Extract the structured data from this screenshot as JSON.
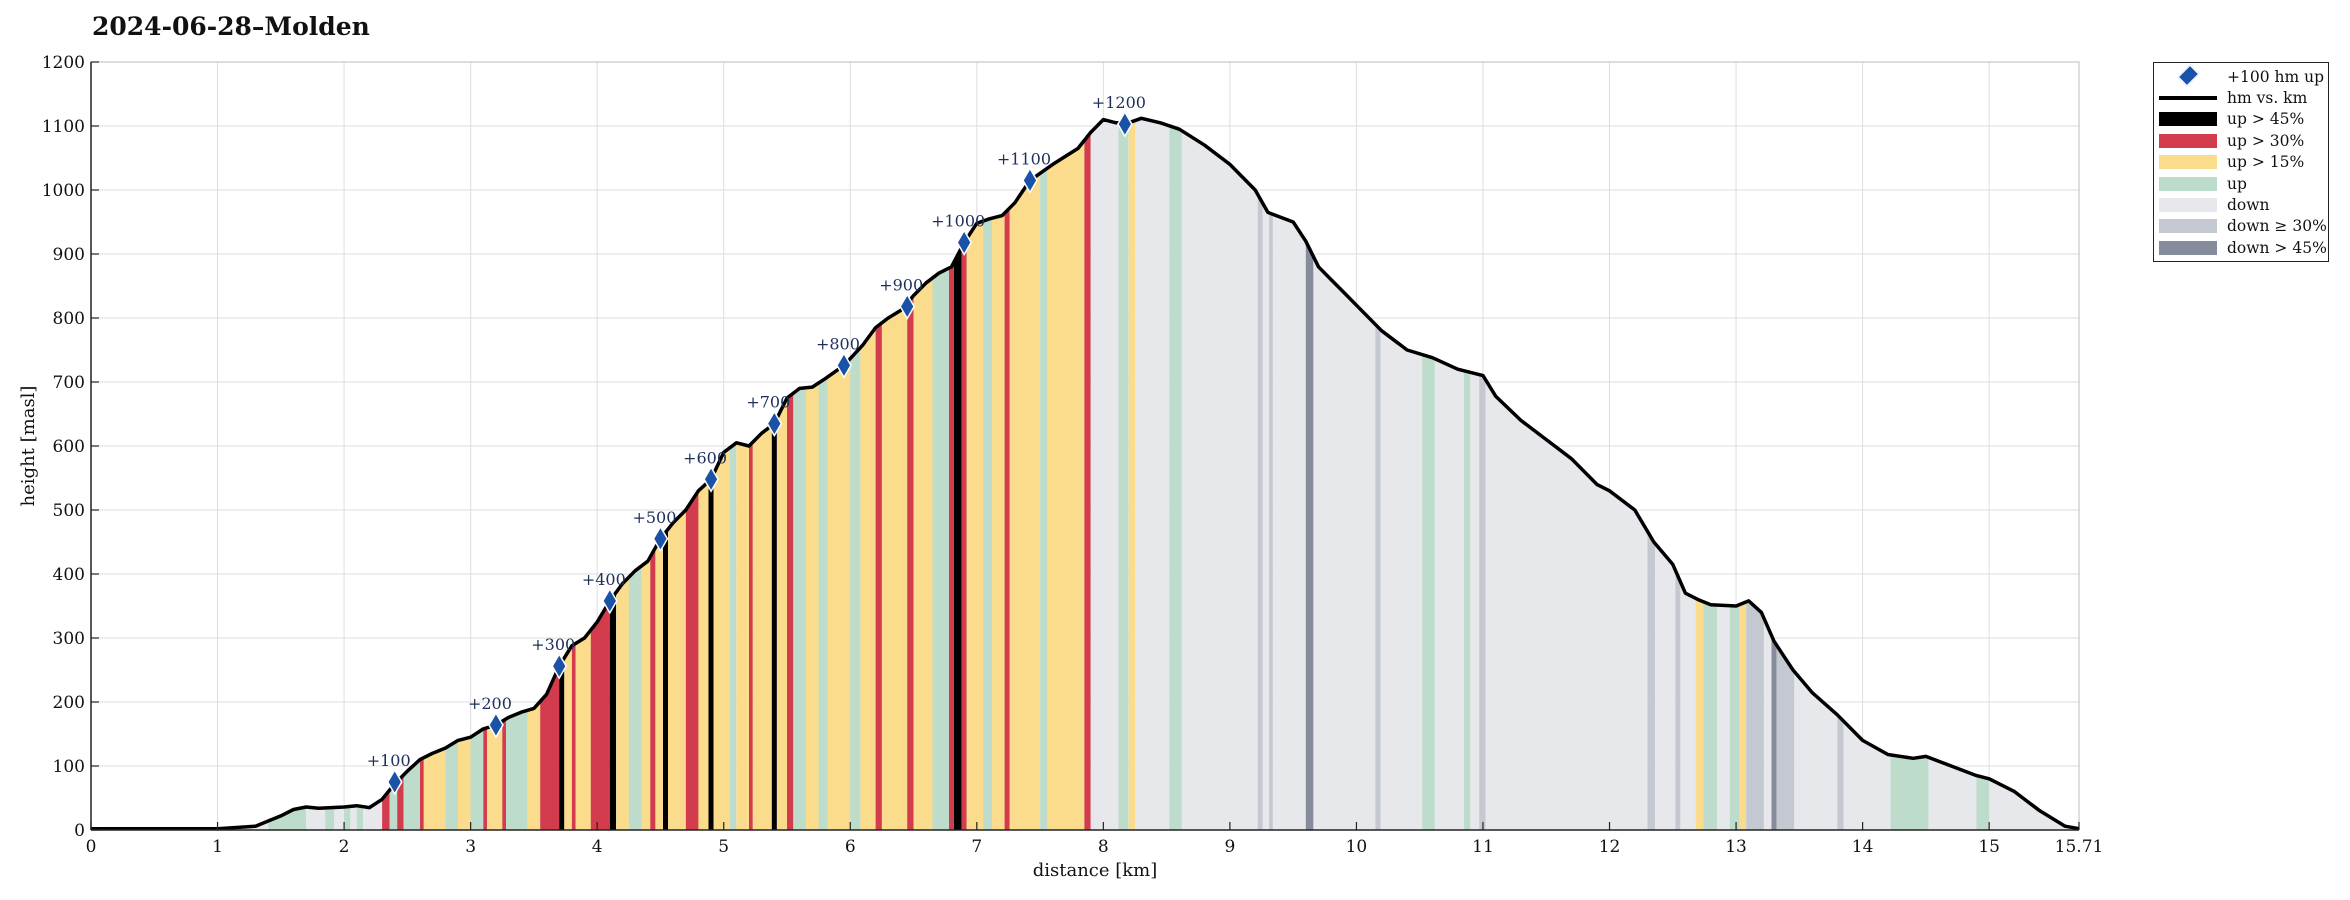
{
  "title": "2024-06-28–Molden",
  "chart_data": {
    "type": "area",
    "title": "2024-06-28–Molden",
    "xlabel": "distance [km]",
    "ylabel": "height [masl]",
    "xlim": [
      0,
      15.71
    ],
    "ylim": [
      0,
      1200
    ],
    "x_ticks": [
      "0",
      "1",
      "2",
      "3",
      "4",
      "5",
      "6",
      "7",
      "8",
      "9",
      "10",
      "11",
      "12",
      "13",
      "14",
      "15",
      "15.71"
    ],
    "y_ticks": [
      "0",
      "100",
      "200",
      "300",
      "400",
      "500",
      "600",
      "700",
      "800",
      "900",
      "1000",
      "1100",
      "1200"
    ],
    "grid": true,
    "legend_position": "outside-right",
    "profile": [
      [
        0,
        2
      ],
      [
        0.5,
        2
      ],
      [
        1.0,
        2
      ],
      [
        1.3,
        6
      ],
      [
        1.4,
        14
      ],
      [
        1.5,
        22
      ],
      [
        1.6,
        32
      ],
      [
        1.7,
        36
      ],
      [
        1.8,
        34
      ],
      [
        2.0,
        36
      ],
      [
        2.1,
        38
      ],
      [
        2.2,
        35
      ],
      [
        2.3,
        48
      ],
      [
        2.4,
        72
      ],
      [
        2.5,
        92
      ],
      [
        2.6,
        110
      ],
      [
        2.7,
        120
      ],
      [
        2.8,
        128
      ],
      [
        2.9,
        140
      ],
      [
        3.0,
        145
      ],
      [
        3.1,
        158
      ],
      [
        3.2,
        164
      ],
      [
        3.3,
        176
      ],
      [
        3.4,
        184
      ],
      [
        3.5,
        190
      ],
      [
        3.6,
        212
      ],
      [
        3.7,
        256
      ],
      [
        3.8,
        288
      ],
      [
        3.9,
        300
      ],
      [
        4.0,
        325
      ],
      [
        4.1,
        358
      ],
      [
        4.2,
        385
      ],
      [
        4.3,
        405
      ],
      [
        4.4,
        420
      ],
      [
        4.5,
        455
      ],
      [
        4.6,
        480
      ],
      [
        4.7,
        500
      ],
      [
        4.8,
        530
      ],
      [
        4.9,
        548
      ],
      [
        5.0,
        590
      ],
      [
        5.1,
        605
      ],
      [
        5.2,
        600
      ],
      [
        5.3,
        620
      ],
      [
        5.4,
        635
      ],
      [
        5.5,
        675
      ],
      [
        5.6,
        690
      ],
      [
        5.7,
        692
      ],
      [
        5.8,
        705
      ],
      [
        5.95,
        726
      ],
      [
        6.1,
        758
      ],
      [
        6.2,
        785
      ],
      [
        6.3,
        800
      ],
      [
        6.4,
        812
      ],
      [
        6.5,
        835
      ],
      [
        6.6,
        855
      ],
      [
        6.7,
        870
      ],
      [
        6.8,
        880
      ],
      [
        6.9,
        918
      ],
      [
        7.0,
        948
      ],
      [
        7.1,
        955
      ],
      [
        7.2,
        960
      ],
      [
        7.3,
        980
      ],
      [
        7.42,
        1015
      ],
      [
        7.6,
        1040
      ],
      [
        7.8,
        1065
      ],
      [
        7.9,
        1090
      ],
      [
        8.0,
        1110
      ],
      [
        8.1,
        1105
      ],
      [
        8.2,
        1105
      ],
      [
        8.3,
        1112
      ],
      [
        8.45,
        1105
      ],
      [
        8.6,
        1095
      ],
      [
        8.8,
        1070
      ],
      [
        9.0,
        1040
      ],
      [
        9.2,
        1000
      ],
      [
        9.3,
        965
      ],
      [
        9.5,
        950
      ],
      [
        9.6,
        920
      ],
      [
        9.7,
        880
      ],
      [
        9.8,
        860
      ],
      [
        9.9,
        840
      ],
      [
        10.0,
        820
      ],
      [
        10.2,
        780
      ],
      [
        10.4,
        750
      ],
      [
        10.6,
        738
      ],
      [
        10.8,
        720
      ],
      [
        11.0,
        710
      ],
      [
        11.1,
        678
      ],
      [
        11.3,
        640
      ],
      [
        11.5,
        610
      ],
      [
        11.7,
        580
      ],
      [
        11.9,
        540
      ],
      [
        12.0,
        530
      ],
      [
        12.2,
        500
      ],
      [
        12.35,
        450
      ],
      [
        12.5,
        415
      ],
      [
        12.6,
        370
      ],
      [
        12.7,
        360
      ],
      [
        12.8,
        352
      ],
      [
        13.0,
        350
      ],
      [
        13.1,
        358
      ],
      [
        13.2,
        340
      ],
      [
        13.3,
        295
      ],
      [
        13.45,
        250
      ],
      [
        13.6,
        215
      ],
      [
        13.8,
        180
      ],
      [
        14.0,
        140
      ],
      [
        14.2,
        118
      ],
      [
        14.4,
        112
      ],
      [
        14.5,
        115
      ],
      [
        14.7,
        100
      ],
      [
        14.9,
        85
      ],
      [
        15.0,
        80
      ],
      [
        15.2,
        60
      ],
      [
        15.4,
        30
      ],
      [
        15.6,
        6
      ],
      [
        15.71,
        2
      ]
    ],
    "milestones": [
      {
        "label": "+100",
        "x": 2.4,
        "y": 75
      },
      {
        "label": "+200",
        "x": 3.2,
        "y": 164
      },
      {
        "label": "+300",
        "x": 3.7,
        "y": 256
      },
      {
        "label": "+400",
        "x": 4.1,
        "y": 358
      },
      {
        "label": "+500",
        "x": 4.5,
        "y": 455
      },
      {
        "label": "+600",
        "x": 4.9,
        "y": 548
      },
      {
        "label": "+700",
        "x": 5.4,
        "y": 635
      },
      {
        "label": "+800",
        "x": 5.95,
        "y": 726
      },
      {
        "label": "+900",
        "x": 6.45,
        "y": 818
      },
      {
        "label": "+1000",
        "x": 6.9,
        "y": 918
      },
      {
        "label": "+1100",
        "x": 7.42,
        "y": 1015
      },
      {
        "label": "+1200",
        "x": 8.17,
        "y": 1103
      }
    ],
    "segments": [
      {
        "x0": 0.0,
        "x1": 1.4,
        "cat": "down"
      },
      {
        "x0": 1.4,
        "x1": 1.7,
        "cat": "up"
      },
      {
        "x0": 1.7,
        "x1": 1.85,
        "cat": "down"
      },
      {
        "x0": 1.85,
        "x1": 1.92,
        "cat": "up"
      },
      {
        "x0": 1.92,
        "x1": 2.0,
        "cat": "down"
      },
      {
        "x0": 2.0,
        "x1": 2.05,
        "cat": "up"
      },
      {
        "x0": 2.05,
        "x1": 2.1,
        "cat": "down"
      },
      {
        "x0": 2.1,
        "x1": 2.15,
        "cat": "up"
      },
      {
        "x0": 2.15,
        "x1": 2.3,
        "cat": "down"
      },
      {
        "x0": 2.3,
        "x1": 2.36,
        "cat": "up30"
      },
      {
        "x0": 2.36,
        "x1": 2.42,
        "cat": "up"
      },
      {
        "x0": 2.42,
        "x1": 2.47,
        "cat": "up30"
      },
      {
        "x0": 2.47,
        "x1": 2.6,
        "cat": "up"
      },
      {
        "x0": 2.6,
        "x1": 2.63,
        "cat": "up30"
      },
      {
        "x0": 2.63,
        "x1": 2.8,
        "cat": "up15"
      },
      {
        "x0": 2.8,
        "x1": 2.9,
        "cat": "up"
      },
      {
        "x0": 2.9,
        "x1": 3.0,
        "cat": "up15"
      },
      {
        "x0": 3.0,
        "x1": 3.1,
        "cat": "up"
      },
      {
        "x0": 3.1,
        "x1": 3.13,
        "cat": "up30"
      },
      {
        "x0": 3.13,
        "x1": 3.25,
        "cat": "up15"
      },
      {
        "x0": 3.25,
        "x1": 3.28,
        "cat": "up30"
      },
      {
        "x0": 3.28,
        "x1": 3.45,
        "cat": "up"
      },
      {
        "x0": 3.45,
        "x1": 3.55,
        "cat": "up15"
      },
      {
        "x0": 3.55,
        "x1": 3.7,
        "cat": "up30"
      },
      {
        "x0": 3.7,
        "x1": 3.74,
        "cat": "up45"
      },
      {
        "x0": 3.74,
        "x1": 3.8,
        "cat": "up15"
      },
      {
        "x0": 3.8,
        "x1": 3.83,
        "cat": "up30"
      },
      {
        "x0": 3.83,
        "x1": 3.95,
        "cat": "up15"
      },
      {
        "x0": 3.95,
        "x1": 4.1,
        "cat": "up30"
      },
      {
        "x0": 4.1,
        "x1": 4.15,
        "cat": "up45"
      },
      {
        "x0": 4.15,
        "x1": 4.25,
        "cat": "up15"
      },
      {
        "x0": 4.25,
        "x1": 4.35,
        "cat": "up"
      },
      {
        "x0": 4.35,
        "x1": 4.42,
        "cat": "up15"
      },
      {
        "x0": 4.42,
        "x1": 4.46,
        "cat": "up30"
      },
      {
        "x0": 4.46,
        "x1": 4.52,
        "cat": "up15"
      },
      {
        "x0": 4.52,
        "x1": 4.56,
        "cat": "up45"
      },
      {
        "x0": 4.56,
        "x1": 4.7,
        "cat": "up15"
      },
      {
        "x0": 4.7,
        "x1": 4.8,
        "cat": "up30"
      },
      {
        "x0": 4.8,
        "x1": 4.88,
        "cat": "up15"
      },
      {
        "x0": 4.88,
        "x1": 4.92,
        "cat": "up45"
      },
      {
        "x0": 4.92,
        "x1": 5.05,
        "cat": "up15"
      },
      {
        "x0": 5.05,
        "x1": 5.1,
        "cat": "up"
      },
      {
        "x0": 5.1,
        "x1": 5.2,
        "cat": "up15"
      },
      {
        "x0": 5.2,
        "x1": 5.23,
        "cat": "up30"
      },
      {
        "x0": 5.23,
        "x1": 5.38,
        "cat": "up15"
      },
      {
        "x0": 5.38,
        "x1": 5.42,
        "cat": "up45"
      },
      {
        "x0": 5.42,
        "x1": 5.5,
        "cat": "up15"
      },
      {
        "x0": 5.5,
        "x1": 5.55,
        "cat": "up30"
      },
      {
        "x0": 5.55,
        "x1": 5.65,
        "cat": "up"
      },
      {
        "x0": 5.65,
        "x1": 5.75,
        "cat": "up15"
      },
      {
        "x0": 5.75,
        "x1": 5.82,
        "cat": "up"
      },
      {
        "x0": 5.82,
        "x1": 6.0,
        "cat": "up15"
      },
      {
        "x0": 6.0,
        "x1": 6.08,
        "cat": "up"
      },
      {
        "x0": 6.08,
        "x1": 6.2,
        "cat": "up15"
      },
      {
        "x0": 6.2,
        "x1": 6.25,
        "cat": "up30"
      },
      {
        "x0": 6.25,
        "x1": 6.45,
        "cat": "up15"
      },
      {
        "x0": 6.45,
        "x1": 6.5,
        "cat": "up30"
      },
      {
        "x0": 6.5,
        "x1": 6.65,
        "cat": "up15"
      },
      {
        "x0": 6.65,
        "x1": 6.78,
        "cat": "up"
      },
      {
        "x0": 6.78,
        "x1": 6.82,
        "cat": "up30"
      },
      {
        "x0": 6.82,
        "x1": 6.88,
        "cat": "up45"
      },
      {
        "x0": 6.88,
        "x1": 6.92,
        "cat": "up30"
      },
      {
        "x0": 6.92,
        "x1": 7.05,
        "cat": "up15"
      },
      {
        "x0": 7.05,
        "x1": 7.12,
        "cat": "up"
      },
      {
        "x0": 7.12,
        "x1": 7.22,
        "cat": "up15"
      },
      {
        "x0": 7.22,
        "x1": 7.26,
        "cat": "up30"
      },
      {
        "x0": 7.26,
        "x1": 7.5,
        "cat": "up15"
      },
      {
        "x0": 7.5,
        "x1": 7.56,
        "cat": "up"
      },
      {
        "x0": 7.56,
        "x1": 7.85,
        "cat": "up15"
      },
      {
        "x0": 7.85,
        "x1": 7.9,
        "cat": "up30"
      },
      {
        "x0": 7.9,
        "x1": 8.12,
        "cat": "down"
      },
      {
        "x0": 8.12,
        "x1": 8.2,
        "cat": "up"
      },
      {
        "x0": 8.2,
        "x1": 8.25,
        "cat": "up15"
      },
      {
        "x0": 8.25,
        "x1": 8.52,
        "cat": "down"
      },
      {
        "x0": 8.52,
        "x1": 8.62,
        "cat": "up"
      },
      {
        "x0": 8.62,
        "x1": 9.22,
        "cat": "down"
      },
      {
        "x0": 9.22,
        "x1": 9.26,
        "cat": "down30"
      },
      {
        "x0": 9.26,
        "x1": 9.31,
        "cat": "down"
      },
      {
        "x0": 9.31,
        "x1": 9.34,
        "cat": "down30"
      },
      {
        "x0": 9.34,
        "x1": 9.6,
        "cat": "down"
      },
      {
        "x0": 9.6,
        "x1": 9.66,
        "cat": "down45"
      },
      {
        "x0": 9.66,
        "x1": 10.15,
        "cat": "down"
      },
      {
        "x0": 10.15,
        "x1": 10.19,
        "cat": "down30"
      },
      {
        "x0": 10.19,
        "x1": 10.52,
        "cat": "down"
      },
      {
        "x0": 10.52,
        "x1": 10.62,
        "cat": "up"
      },
      {
        "x0": 10.62,
        "x1": 10.85,
        "cat": "down"
      },
      {
        "x0": 10.85,
        "x1": 10.9,
        "cat": "up"
      },
      {
        "x0": 10.9,
        "x1": 10.97,
        "cat": "down"
      },
      {
        "x0": 10.97,
        "x1": 11.02,
        "cat": "down30"
      },
      {
        "x0": 11.02,
        "x1": 12.3,
        "cat": "down"
      },
      {
        "x0": 12.3,
        "x1": 12.36,
        "cat": "down30"
      },
      {
        "x0": 12.36,
        "x1": 12.52,
        "cat": "down"
      },
      {
        "x0": 12.52,
        "x1": 12.56,
        "cat": "down30"
      },
      {
        "x0": 12.56,
        "x1": 12.68,
        "cat": "down"
      },
      {
        "x0": 12.68,
        "x1": 12.74,
        "cat": "up15"
      },
      {
        "x0": 12.74,
        "x1": 12.85,
        "cat": "up"
      },
      {
        "x0": 12.85,
        "x1": 12.95,
        "cat": "down"
      },
      {
        "x0": 12.95,
        "x1": 13.03,
        "cat": "up"
      },
      {
        "x0": 13.03,
        "x1": 13.08,
        "cat": "up15"
      },
      {
        "x0": 13.08,
        "x1": 13.22,
        "cat": "down30"
      },
      {
        "x0": 13.22,
        "x1": 13.28,
        "cat": "down"
      },
      {
        "x0": 13.28,
        "x1": 13.32,
        "cat": "down45"
      },
      {
        "x0": 13.32,
        "x1": 13.46,
        "cat": "down30"
      },
      {
        "x0": 13.46,
        "x1": 13.8,
        "cat": "down"
      },
      {
        "x0": 13.8,
        "x1": 13.85,
        "cat": "down30"
      },
      {
        "x0": 13.85,
        "x1": 14.22,
        "cat": "down"
      },
      {
        "x0": 14.22,
        "x1": 14.52,
        "cat": "up"
      },
      {
        "x0": 14.52,
        "x1": 14.9,
        "cat": "down"
      },
      {
        "x0": 14.9,
        "x1": 15.0,
        "cat": "up"
      },
      {
        "x0": 15.0,
        "x1": 15.71,
        "cat": "down"
      }
    ],
    "categories": {
      "up45": {
        "label": "up > 45%",
        "color": "#000000"
      },
      "up30": {
        "label": "up > 30%",
        "color": "#d23c4c"
      },
      "up15": {
        "label": "up > 15%",
        "color": "#fadc8c"
      },
      "up": {
        "label": "up",
        "color": "#bedccb"
      },
      "down": {
        "label": "down",
        "color": "#e6e8eb"
      },
      "down30": {
        "label": "down ≥ 30%",
        "color": "#c4c8d0"
      },
      "down45": {
        "label": "down > 45%",
        "color": "#868c9c"
      }
    },
    "legend": [
      {
        "key": "marker",
        "label": "+100 hm up",
        "symbol": "diamond",
        "color": "#1a52a8"
      },
      {
        "key": "line",
        "label": "hm vs. km",
        "symbol": "line",
        "color": "#000000"
      },
      {
        "key": "up45",
        "label": "up > 45%",
        "symbol": "bar"
      },
      {
        "key": "up30",
        "label": "up > 30%",
        "symbol": "bar"
      },
      {
        "key": "up15",
        "label": "up > 15%",
        "symbol": "bar"
      },
      {
        "key": "up",
        "label": "up",
        "symbol": "bar"
      },
      {
        "key": "down",
        "label": "down",
        "symbol": "bar"
      },
      {
        "key": "down30",
        "label": "down ≥ 30%",
        "symbol": "bar"
      },
      {
        "key": "down45",
        "label": "down > 45%",
        "symbol": "bar"
      }
    ]
  }
}
